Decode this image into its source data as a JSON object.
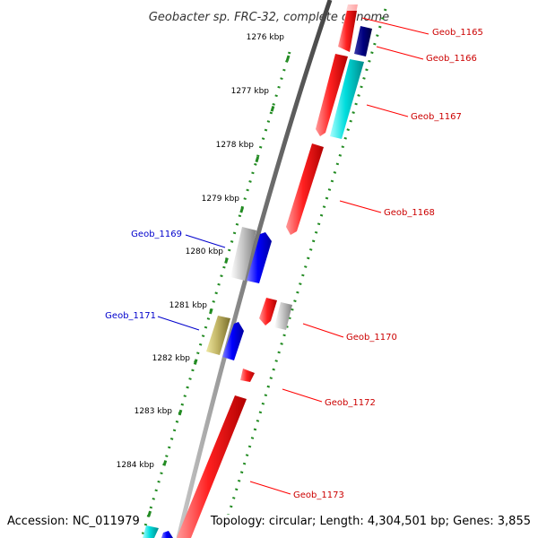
{
  "title": "Geobacter sp. FRC-32, complete genome",
  "footer": {
    "accession": "Accession: NC_011979",
    "info": "Topology: circular; Length: 4,304,501 bp; Genes: 3,855"
  },
  "colors": {
    "backbone": "#8a8a8a",
    "ruler_ticks": "#228b22",
    "label_top_strand": "#0000cc",
    "label_bottom_strand": "#cc0000"
  },
  "kbp_labels": [
    "1276 kbp",
    "1277 kbp",
    "1278 kbp",
    "1279 kbp",
    "1280 kbp",
    "1281 kbp",
    "1282 kbp",
    "1283 kbp",
    "1284 kbp"
  ],
  "genes": [
    {
      "id": "Geob_1165",
      "color": "#ff0000"
    },
    {
      "id": "Geob_1166",
      "color": "#000080"
    },
    {
      "id": "Geob_1167",
      "color": "#00cccc"
    },
    {
      "id": "Geob_1168",
      "color": "#ff0000"
    },
    {
      "id": "Geob_1169",
      "color": "#aaaaaa"
    },
    {
      "id": "Geob_1170",
      "color": "#ff0000"
    },
    {
      "id": "Geob_1171",
      "color": "#b5a642"
    },
    {
      "id": "Geob_1172",
      "color": "#ff0000"
    },
    {
      "id": "Geob_1173",
      "color": "#ff0000"
    }
  ]
}
